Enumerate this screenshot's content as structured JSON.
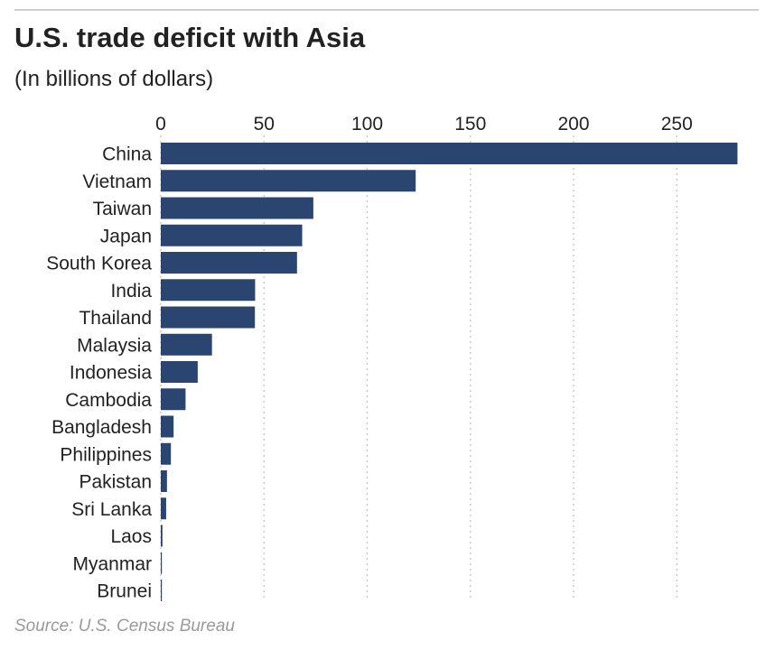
{
  "chart_data": {
    "type": "bar",
    "orientation": "horizontal",
    "title": "U.S. trade deficit with Asia",
    "subtitle": "(In billions of dollars)",
    "source": "Source: U.S. Census Bureau",
    "categories": [
      "China",
      "Vietnam",
      "Taiwan",
      "Japan",
      "South Korea",
      "India",
      "Thailand",
      "Malaysia",
      "Indonesia",
      "Cambodia",
      "Bangladesh",
      "Philippines",
      "Pakistan",
      "Sri Lanka",
      "Laos",
      "Myanmar",
      "Brunei"
    ],
    "values": [
      279.4,
      123.5,
      73.9,
      68.5,
      66.0,
      45.7,
      45.6,
      24.8,
      17.9,
      12.0,
      6.2,
      4.9,
      3.0,
      2.6,
      0.8,
      0.5,
      0.1
    ],
    "xticks": [
      0,
      50,
      100,
      150,
      200,
      250
    ],
    "xlim": [
      0,
      280
    ],
    "xlabel": "",
    "ylabel": "",
    "grid": "vertical dotted",
    "legend": "none",
    "bar_color": "#2b4571",
    "grid_color": "#c8c8c8"
  }
}
